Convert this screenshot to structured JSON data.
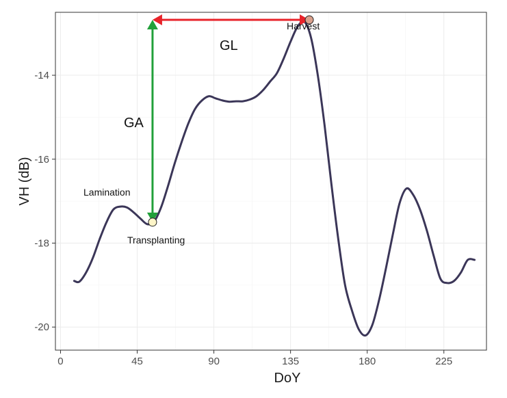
{
  "chart_data": {
    "type": "line",
    "xlabel": "DoY",
    "ylabel": "VH (dB)",
    "xlim": [
      -3,
      250
    ],
    "ylim": [
      -20.55,
      -12.5
    ],
    "x_ticks": [
      0,
      45,
      90,
      135,
      180,
      225
    ],
    "y_ticks": [
      -14,
      -16,
      -18,
      -20
    ],
    "x_tick_labels": [
      "0",
      "45",
      "90",
      "135",
      "180",
      "225"
    ],
    "y_tick_labels": [
      "-14",
      "-16",
      "-18",
      "-20"
    ],
    "grid": true,
    "series": [
      {
        "color": "#3b3658",
        "x": [
          8,
          11,
          15,
          19,
          23,
          27,
          31,
          35,
          39,
          43,
          47,
          51,
          55,
          59,
          63,
          67,
          71,
          75,
          79,
          83,
          87,
          91,
          95,
          99,
          103,
          107,
          111,
          115,
          119,
          123,
          127,
          131,
          135,
          139,
          143,
          147,
          151,
          155,
          159,
          163,
          167,
          171,
          175,
          179,
          183,
          187,
          191,
          195,
          199,
          203,
          207,
          211,
          215,
          219,
          223,
          227,
          231,
          235,
          239,
          243
        ],
        "y": [
          -18.9,
          -18.92,
          -18.7,
          -18.35,
          -17.9,
          -17.5,
          -17.2,
          -17.13,
          -17.15,
          -17.27,
          -17.42,
          -17.55,
          -17.48,
          -17.15,
          -16.65,
          -16.1,
          -15.6,
          -15.15,
          -14.8,
          -14.6,
          -14.5,
          -14.55,
          -14.6,
          -14.63,
          -14.62,
          -14.62,
          -14.58,
          -14.5,
          -14.35,
          -14.15,
          -13.95,
          -13.6,
          -13.2,
          -12.85,
          -12.72,
          -13.1,
          -14.0,
          -15.2,
          -16.6,
          -17.9,
          -19.0,
          -19.6,
          -20.05,
          -20.2,
          -19.95,
          -19.35,
          -18.6,
          -17.8,
          -17.05,
          -16.7,
          -16.85,
          -17.2,
          -17.7,
          -18.3,
          -18.85,
          -18.95,
          -18.9,
          -18.7,
          -18.4,
          -18.4
        ]
      }
    ],
    "points": [
      {
        "name": "Transplanting",
        "x": 54,
        "y": -17.5,
        "color": "#fdf5c8"
      },
      {
        "name": "Harvest",
        "x": 146,
        "y": -12.68,
        "color": "#d9a08c"
      }
    ],
    "annotations": {
      "lamination": "Lamination",
      "transplanting": "Transplanting",
      "harvest": "Harvest",
      "ga": "GA",
      "gl": "GL"
    },
    "colors": {
      "line": "#3b3658",
      "ga_arrow": "#22a03a",
      "gl_arrow": "#e8232a",
      "grid": "#ebebeb",
      "panel_border": "#333333"
    }
  }
}
